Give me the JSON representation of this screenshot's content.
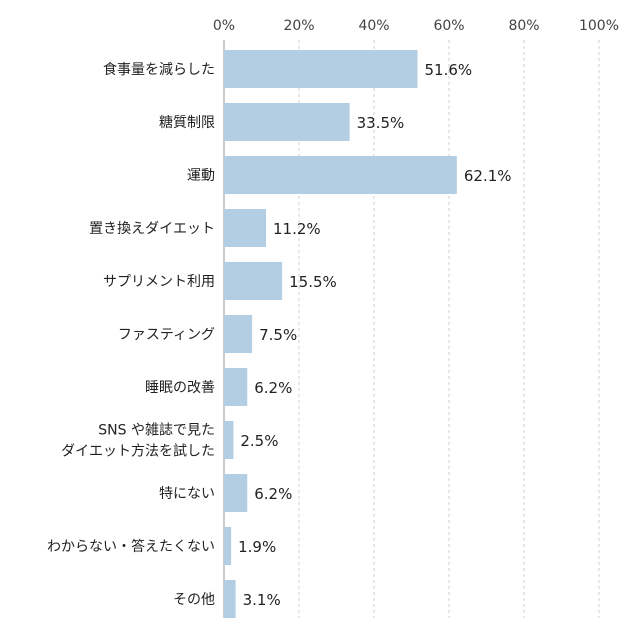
{
  "chart_data": {
    "type": "bar",
    "orientation": "horizontal",
    "categories": [
      [
        "食事量を減らした"
      ],
      [
        "糖質制限"
      ],
      [
        "運動"
      ],
      [
        "置き換えダイエット"
      ],
      [
        "サプリメント利用"
      ],
      [
        "ファスティング"
      ],
      [
        "睡眠の改善"
      ],
      [
        "SNS や雑誌で見た",
        "ダイエット方法を試した"
      ],
      [
        "特にない"
      ],
      [
        "わからない・答えたくない"
      ],
      [
        "その他"
      ]
    ],
    "values": [
      51.6,
      33.5,
      62.1,
      11.2,
      15.5,
      7.5,
      6.2,
      2.5,
      6.2,
      1.9,
      3.1
    ],
    "value_labels": [
      "51.6%",
      "33.5%",
      "62.1%",
      "11.2%",
      "15.5%",
      "7.5%",
      "6.2%",
      "2.5%",
      "6.2%",
      "1.9%",
      "3.1%"
    ],
    "xlim": [
      0,
      100
    ],
    "ticks": [
      0,
      20,
      40,
      60,
      80,
      100
    ],
    "tick_labels": [
      "0%",
      "20%",
      "40%",
      "60%",
      "80%",
      "100%"
    ],
    "tick_position": "top",
    "grid": true,
    "colors": {
      "bar": "#b3cee3",
      "grid": "#cfcfcf"
    }
  }
}
